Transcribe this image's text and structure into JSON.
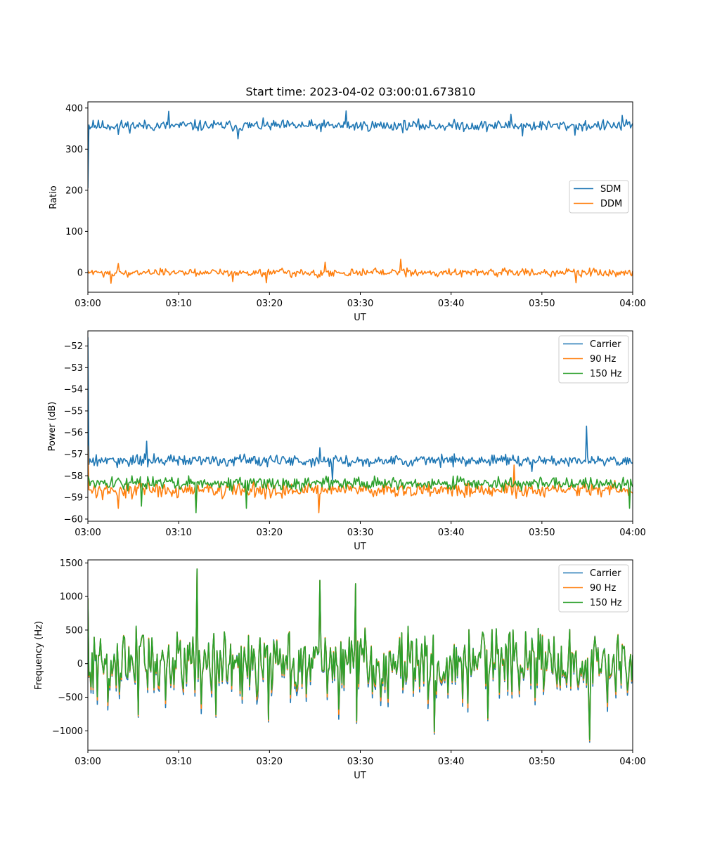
{
  "figure_title": "Start time: 2023-04-02 03:00:01.673810",
  "chart_data": [
    {
      "type": "line",
      "title": "Start time: 2023-04-02 03:00:01.673810",
      "xlabel": "UT",
      "ylabel": "Ratio",
      "xlim_minutes": [
        0,
        60
      ],
      "ylim": [
        -48,
        415
      ],
      "xticks": [
        "03:00",
        "03:10",
        "03:20",
        "03:30",
        "03:40",
        "03:50",
        "04:00"
      ],
      "yticks": [
        0,
        100,
        200,
        300,
        400
      ],
      "legend_position": "center-right",
      "series": [
        {
          "name": "SDM",
          "color": "#1f77b4",
          "start": 205,
          "mean": 357,
          "noise": 11,
          "spikes": [
            [
              0.6,
              370
            ],
            [
              8.9,
              392
            ],
            [
              28.4,
              393
            ],
            [
              46.6,
              385
            ],
            [
              58.9,
              382
            ],
            [
              3.3,
              336
            ],
            [
              16.5,
              325
            ],
            [
              47.9,
              332
            ],
            [
              53.6,
              334
            ]
          ]
        },
        {
          "name": "DDM",
          "color": "#ff7f0e",
          "start": 5,
          "mean": 0,
          "noise": 8,
          "spikes": [
            [
              3.3,
              22
            ],
            [
              34.4,
              32
            ],
            [
              26.1,
              25
            ],
            [
              2.6,
              -26
            ],
            [
              15.9,
              -22
            ],
            [
              19.6,
              -25
            ],
            [
              53.8,
              -25
            ]
          ]
        }
      ]
    },
    {
      "type": "line",
      "title": "",
      "xlabel": "UT",
      "ylabel": "Power (dB)",
      "xlim_minutes": [
        0,
        60
      ],
      "ylim": [
        -60.1,
        -51.3
      ],
      "xticks": [
        "03:00",
        "03:10",
        "03:20",
        "03:30",
        "03:40",
        "03:50",
        "04:00"
      ],
      "yticks": [
        -60,
        -59,
        -58,
        -57,
        -56,
        -55,
        -54,
        -53,
        -52
      ],
      "legend_position": "top-right",
      "series": [
        {
          "name": "Carrier",
          "color": "#1f77b4",
          "start": -51.6,
          "mean": -57.3,
          "noise": 0.22,
          "spikes": [
            [
              6.5,
              -56.4
            ],
            [
              54.9,
              -55.7
            ],
            [
              25.6,
              -56.7
            ],
            [
              26.9,
              -58.2
            ],
            [
              48.9,
              -57.8
            ]
          ]
        },
        {
          "name": "90 Hz",
          "color": "#ff7f0e",
          "start": -56.6,
          "mean": -58.65,
          "noise": 0.28,
          "spikes": [
            [
              25.4,
              -59.7
            ],
            [
              11.9,
              -59.5
            ],
            [
              46.9,
              -57.5
            ],
            [
              3.3,
              -59.5
            ]
          ]
        },
        {
          "name": "150 Hz",
          "color": "#2ca02c",
          "start": -58.0,
          "mean": -58.35,
          "noise": 0.25,
          "spikes": [
            [
              11.9,
              -59.7
            ],
            [
              59.6,
              -59.5
            ],
            [
              5.9,
              -59.4
            ],
            [
              17.5,
              -59.5
            ]
          ]
        }
      ]
    },
    {
      "type": "line",
      "title": "",
      "xlabel": "UT",
      "ylabel": "Frequency (Hz)",
      "xlim_minutes": [
        0,
        60
      ],
      "ylim": [
        -1290,
        1545
      ],
      "xticks": [
        "03:00",
        "03:10",
        "03:20",
        "03:30",
        "03:40",
        "03:50",
        "04:00"
      ],
      "yticks": [
        -1000,
        -500,
        0,
        500,
        1000,
        1500
      ],
      "legend_position": "top-right",
      "series": [
        {
          "name": "Carrier",
          "color": "#1f77b4",
          "start": 980,
          "mean": 0,
          "noise": 330,
          "offset": -55,
          "spikes": [
            [
              12.0,
              1410
            ],
            [
              19.9,
              1240
            ],
            [
              25.6,
              1240
            ],
            [
              29.5,
              1190
            ],
            [
              55.3,
              -1170
            ],
            [
              38.1,
              -1050
            ],
            [
              5.5,
              -800
            ],
            [
              14.1,
              -800
            ],
            [
              19.9,
              -870
            ],
            [
              29.6,
              -890
            ],
            [
              44.0,
              -850
            ]
          ]
        },
        {
          "name": "90 Hz",
          "color": "#ff7f0e",
          "start": 975,
          "mean": 0,
          "noise": 330,
          "offset": -25,
          "spikes": [
            [
              12.0,
              1410
            ],
            [
              19.9,
              1240
            ],
            [
              25.6,
              1240
            ],
            [
              29.5,
              1190
            ],
            [
              55.3,
              -1150
            ],
            [
              38.1,
              -1030
            ],
            [
              5.5,
              -780
            ],
            [
              14.1,
              -780
            ],
            [
              19.9,
              -850
            ],
            [
              29.6,
              -870
            ],
            [
              44.0,
              -830
            ]
          ]
        },
        {
          "name": "150 Hz",
          "color": "#2ca02c",
          "start": 970,
          "mean": 0,
          "noise": 330,
          "offset": 0,
          "spikes": [
            [
              12.0,
              1410
            ],
            [
              19.9,
              1240
            ],
            [
              25.6,
              1240
            ],
            [
              29.5,
              1190
            ],
            [
              55.3,
              -1130
            ],
            [
              38.1,
              -1010
            ],
            [
              5.5,
              -760
            ],
            [
              14.1,
              -760
            ],
            [
              19.9,
              -830
            ],
            [
              29.6,
              -850
            ],
            [
              44.0,
              -810
            ]
          ]
        }
      ]
    }
  ]
}
